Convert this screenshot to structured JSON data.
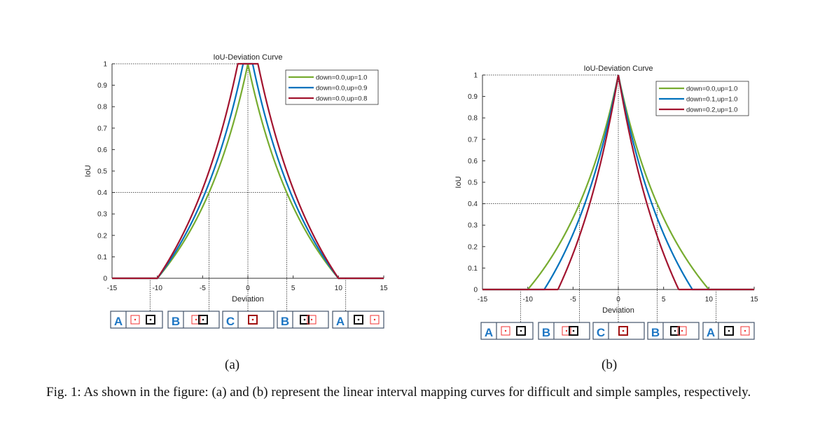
{
  "chart_data": [
    {
      "type": "line",
      "panel_label": "(a)",
      "title": "IoU-Deviation Curve",
      "xlabel": "Deviation",
      "ylabel": "IoU",
      "xlim": [
        -15,
        15
      ],
      "ylim": [
        0,
        1
      ],
      "xticks": [
        "-15",
        "-10",
        "-5",
        "0",
        "5",
        "10",
        "15"
      ],
      "yticks": [
        "0",
        "0.1",
        "0.2",
        "0.3",
        "0.4",
        "0.5",
        "0.6",
        "0.7",
        "0.8",
        "0.9",
        "1"
      ],
      "legend_position": "top-right",
      "function": "IoU=(10-|d|)/(10+|d|), mapped=clamp((IoU-down)/(up-down),0,1)",
      "series": [
        {
          "name": "down=0.0,up=1.0",
          "down": 0.0,
          "up": 1.0,
          "color": "#77ac30"
        },
        {
          "name": "down=0.0,up=0.9",
          "down": 0.0,
          "up": 0.9,
          "color": "#0072bd"
        },
        {
          "name": "down=0.0,up=0.8",
          "down": 0.0,
          "up": 0.8,
          "color": "#a2142f"
        }
      ],
      "guides": {
        "iou_level": 0.4,
        "deviation": 4.29,
        "outer": 10.8
      },
      "regions": [
        "A",
        "B",
        "C",
        "B",
        "A"
      ]
    },
    {
      "type": "line",
      "panel_label": "(b)",
      "title": "IoU-Deviation Curve",
      "xlabel": "Deviation",
      "ylabel": "IoU",
      "xlim": [
        -15,
        15
      ],
      "ylim": [
        0,
        1
      ],
      "xticks": [
        "-15",
        "-10",
        "-5",
        "0",
        "5",
        "10",
        "15"
      ],
      "yticks": [
        "0",
        "0.1",
        "0.2",
        "0.3",
        "0.4",
        "0.5",
        "0.6",
        "0.7",
        "0.8",
        "0.9",
        "1"
      ],
      "legend_position": "top-right",
      "function": "IoU=(10-|d|)/(10+|d|), mapped=clamp((IoU-down)/(up-down),0,1)",
      "series": [
        {
          "name": "down=0.0,up=1.0",
          "down": 0.0,
          "up": 1.0,
          "color": "#77ac30"
        },
        {
          "name": "down=0.1,up=1.0",
          "down": 0.1,
          "up": 1.0,
          "color": "#0072bd"
        },
        {
          "name": "down=0.2,up=1.0",
          "down": 0.2,
          "up": 1.0,
          "color": "#a2142f"
        }
      ],
      "guides": {
        "iou_level": 0.4,
        "deviation": 4.29,
        "outer": 10.8
      },
      "regions": [
        "A",
        "B",
        "C",
        "B",
        "A"
      ]
    }
  ],
  "caption": "Fig. 1: As shown in the figure: (a) and (b) represent the linear interval mapping curves for difficult and simple samples, respectively."
}
